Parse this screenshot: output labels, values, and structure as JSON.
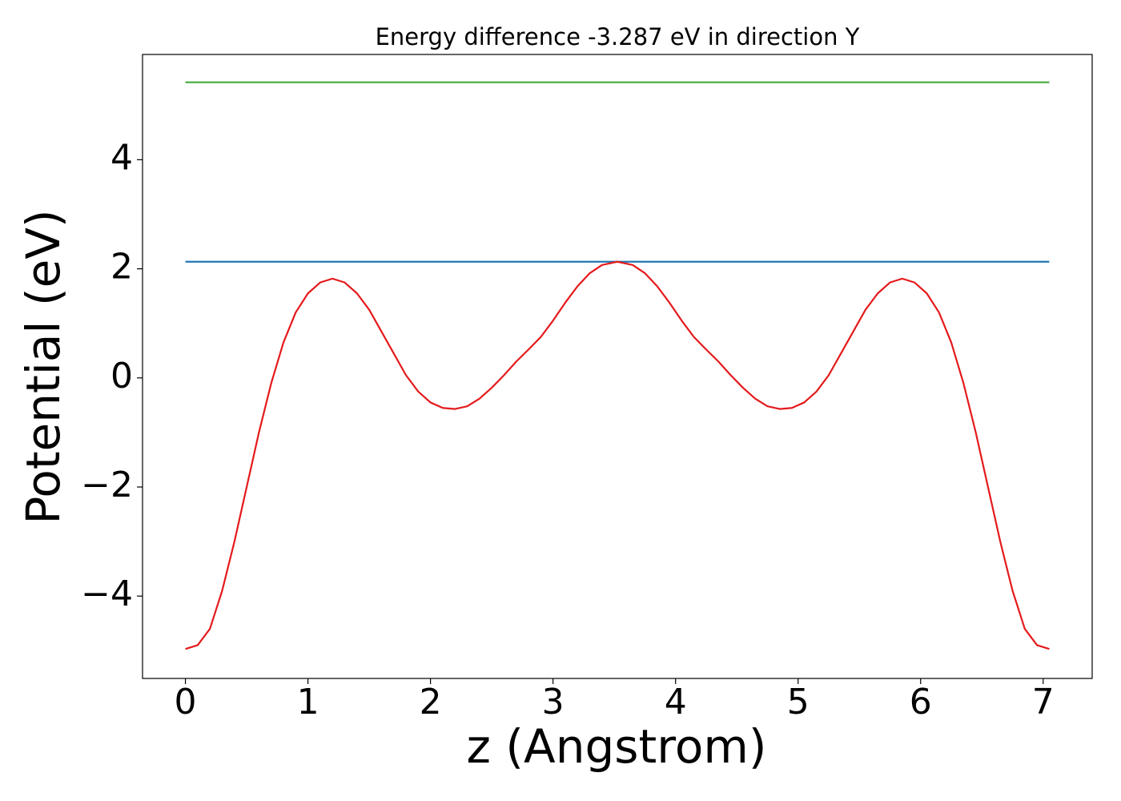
{
  "chart_data": {
    "type": "line",
    "title": "Energy difference -3.287 eV in direction Y",
    "xlabel": "z (Angstrom)",
    "ylabel": "Potential (eV)",
    "xlim": [
      -0.35,
      7.4
    ],
    "ylim": [
      -5.51,
      5.93
    ],
    "xticks": [
      0,
      1,
      2,
      3,
      4,
      5,
      6,
      7
    ],
    "yticks": [
      {
        "value": -4,
        "label": "−4"
      },
      {
        "value": -2,
        "label": "−2"
      },
      0,
      2,
      4
    ],
    "grid": false,
    "series": [
      {
        "color": "#4daf4a",
        "x": [
          0,
          7.05
        ],
        "values": [
          5.42,
          5.42
        ]
      },
      {
        "color": "#1f77b4",
        "x": [
          0,
          7.05
        ],
        "values": [
          2.13,
          2.13
        ]
      },
      {
        "color": "#e41a1c",
        "x": [
          0,
          0.1,
          0.2,
          0.3,
          0.4,
          0.5,
          0.6,
          0.7,
          0.8,
          0.9,
          1.0,
          1.1,
          1.2,
          1.3,
          1.4,
          1.5,
          1.6,
          1.7,
          1.8,
          1.9,
          2.0,
          2.1,
          2.2,
          2.3,
          2.4,
          2.5,
          2.6,
          2.7,
          2.8,
          2.9,
          3.0,
          3.1,
          3.2,
          3.3,
          3.4,
          3.525,
          3.65,
          3.75,
          3.85,
          3.95,
          4.05,
          4.15,
          4.25,
          4.35,
          4.45,
          4.55,
          4.65,
          4.75,
          4.85,
          4.95,
          5.05,
          5.15,
          5.25,
          5.35,
          5.45,
          5.55,
          5.65,
          5.75,
          5.85,
          5.95,
          6.05,
          6.15,
          6.25,
          6.35,
          6.45,
          6.55,
          6.65,
          6.75,
          6.85,
          6.95,
          7.05
        ],
        "values": [
          -4.97,
          -4.9,
          -4.6,
          -3.9,
          -3.0,
          -2.0,
          -1.0,
          -0.1,
          0.65,
          1.2,
          1.55,
          1.75,
          1.82,
          1.75,
          1.55,
          1.25,
          0.85,
          0.45,
          0.05,
          -0.25,
          -0.45,
          -0.55,
          -0.57,
          -0.52,
          -0.38,
          -0.18,
          0.05,
          0.3,
          0.52,
          0.75,
          1.05,
          1.38,
          1.68,
          1.92,
          2.07,
          2.13,
          2.07,
          1.92,
          1.68,
          1.38,
          1.05,
          0.75,
          0.52,
          0.3,
          0.05,
          -0.18,
          -0.38,
          -0.52,
          -0.57,
          -0.55,
          -0.45,
          -0.25,
          0.05,
          0.45,
          0.85,
          1.25,
          1.55,
          1.75,
          1.82,
          1.75,
          1.55,
          1.2,
          0.65,
          -0.1,
          -1.0,
          -2.0,
          -3.0,
          -3.9,
          -4.6,
          -4.9,
          -4.97
        ]
      }
    ]
  }
}
